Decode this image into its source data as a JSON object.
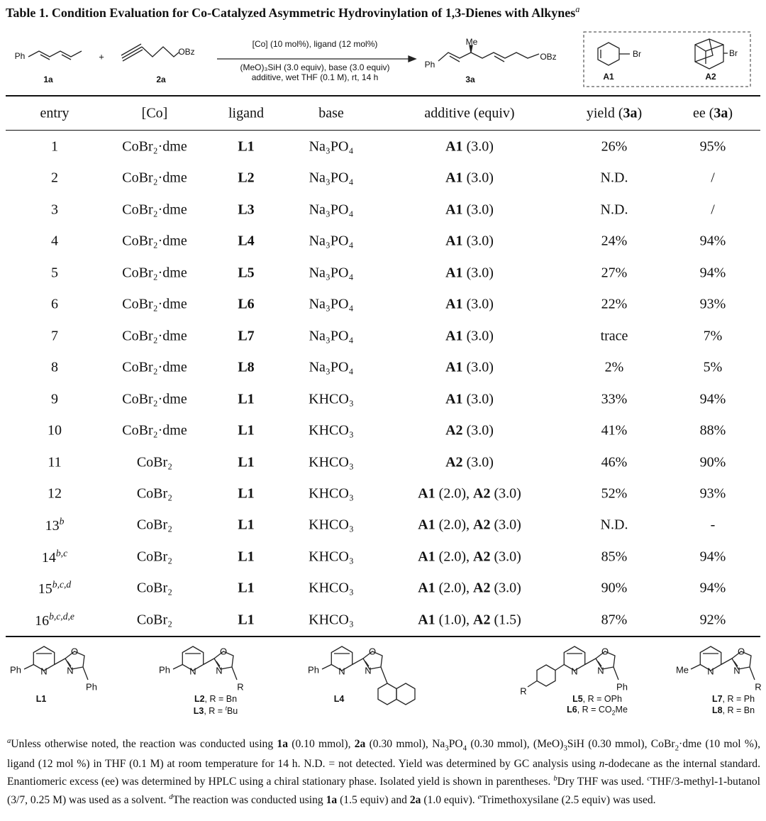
{
  "title": [
    {
      "t": "Table 1. Condition Evaluation for Co-Catalyzed Asymmetric Hydrovinylation of 1,3-Dienes with Alkynes",
      "s": "b"
    },
    {
      "t": "a",
      "s": "sup-i"
    }
  ],
  "scheme": {
    "reactant1": {
      "group": "Ph",
      "id": "1a"
    },
    "plus": "+",
    "reactant2": {
      "group": "OBz",
      "id": "2a"
    },
    "conditions": [
      "[Co] (10 mol%), ligand (12 mol%)",
      "(MeO)₃SiH (3.0 equiv), base (3.0 equiv)",
      "additive, wet THF (0.1 M), rt, 14 h"
    ],
    "product": {
      "methyl": "Me",
      "group1": "Ph",
      "group2": "OBz",
      "id": "3a"
    },
    "additives": [
      {
        "group": "Br",
        "id": "A1"
      },
      {
        "group": "Br",
        "id": "A2"
      }
    ]
  },
  "table": {
    "header": [
      [
        "entry"
      ],
      [
        "[Co]"
      ],
      [
        "ligand"
      ],
      [
        "base"
      ],
      [
        "additive (equiv)"
      ],
      [
        "yield (",
        {
          "t": "3a",
          "s": "b"
        },
        ")"
      ],
      [
        "ee (",
        {
          "t": "3a",
          "s": "b"
        },
        ")"
      ]
    ],
    "rows": [
      [
        [
          "1"
        ],
        [
          "CoBr₂·dme"
        ],
        [
          {
            "t": "L1",
            "s": "b"
          }
        ],
        [
          "Na₃PO₄"
        ],
        [
          {
            "t": "A1",
            "s": "b"
          },
          " (3.0)"
        ],
        [
          "26%"
        ],
        [
          "95%"
        ]
      ],
      [
        [
          "2"
        ],
        [
          "CoBr₂·dme"
        ],
        [
          {
            "t": "L2",
            "s": "b"
          }
        ],
        [
          "Na₃PO₄"
        ],
        [
          {
            "t": "A1",
            "s": "b"
          },
          " (3.0)"
        ],
        [
          "N.D."
        ],
        [
          "/"
        ]
      ],
      [
        [
          "3"
        ],
        [
          "CoBr₂·dme"
        ],
        [
          {
            "t": "L3",
            "s": "b"
          }
        ],
        [
          "Na₃PO₄"
        ],
        [
          {
            "t": "A1",
            "s": "b"
          },
          " (3.0)"
        ],
        [
          "N.D."
        ],
        [
          "/"
        ]
      ],
      [
        [
          "4"
        ],
        [
          "CoBr₂·dme"
        ],
        [
          {
            "t": "L4",
            "s": "b"
          }
        ],
        [
          "Na₃PO₄"
        ],
        [
          {
            "t": "A1",
            "s": "b"
          },
          " (3.0)"
        ],
        [
          "24%"
        ],
        [
          "94%"
        ]
      ],
      [
        [
          "5"
        ],
        [
          "CoBr₂·dme"
        ],
        [
          {
            "t": "L5",
            "s": "b"
          }
        ],
        [
          "Na₃PO₄"
        ],
        [
          {
            "t": "A1",
            "s": "b"
          },
          " (3.0)"
        ],
        [
          "27%"
        ],
        [
          "94%"
        ]
      ],
      [
        [
          "6"
        ],
        [
          "CoBr₂·dme"
        ],
        [
          {
            "t": "L6",
            "s": "b"
          }
        ],
        [
          "Na₃PO₄"
        ],
        [
          {
            "t": "A1",
            "s": "b"
          },
          " (3.0)"
        ],
        [
          "22%"
        ],
        [
          "93%"
        ]
      ],
      [
        [
          "7"
        ],
        [
          "CoBr₂·dme"
        ],
        [
          {
            "t": "L7",
            "s": "b"
          }
        ],
        [
          "Na₃PO₄"
        ],
        [
          {
            "t": "A1",
            "s": "b"
          },
          " (3.0)"
        ],
        [
          "trace"
        ],
        [
          "7%"
        ]
      ],
      [
        [
          "8"
        ],
        [
          "CoBr₂·dme"
        ],
        [
          {
            "t": "L8",
            "s": "b"
          }
        ],
        [
          "Na₃PO₄"
        ],
        [
          {
            "t": "A1",
            "s": "b"
          },
          " (3.0)"
        ],
        [
          "2%"
        ],
        [
          "5%"
        ]
      ],
      [
        [
          "9"
        ],
        [
          "CoBr₂·dme"
        ],
        [
          {
            "t": "L1",
            "s": "b"
          }
        ],
        [
          "KHCO₃"
        ],
        [
          {
            "t": "A1",
            "s": "b"
          },
          " (3.0)"
        ],
        [
          "33%"
        ],
        [
          "94%"
        ]
      ],
      [
        [
          "10"
        ],
        [
          "CoBr₂·dme"
        ],
        [
          {
            "t": "L1",
            "s": "b"
          }
        ],
        [
          "KHCO₃"
        ],
        [
          {
            "t": "A2",
            "s": "b"
          },
          " (3.0)"
        ],
        [
          "41%"
        ],
        [
          "88%"
        ]
      ],
      [
        [
          "11"
        ],
        [
          "CoBr₂"
        ],
        [
          {
            "t": "L1",
            "s": "b"
          }
        ],
        [
          "KHCO₃"
        ],
        [
          {
            "t": "A2",
            "s": "b"
          },
          " (3.0)"
        ],
        [
          "46%"
        ],
        [
          "90%"
        ]
      ],
      [
        [
          "12"
        ],
        [
          "CoBr₂"
        ],
        [
          {
            "t": "L1",
            "s": "b"
          }
        ],
        [
          "KHCO₃"
        ],
        [
          {
            "t": "A1",
            "s": "b"
          },
          " (2.0), ",
          {
            "t": "A2",
            "s": "b"
          },
          " (3.0)"
        ],
        [
          "52%"
        ],
        [
          "93%"
        ]
      ],
      [
        [
          "13",
          {
            "t": "b",
            "s": "sup-i"
          }
        ],
        [
          "CoBr₂"
        ],
        [
          {
            "t": "L1",
            "s": "b"
          }
        ],
        [
          "KHCO₃"
        ],
        [
          {
            "t": "A1",
            "s": "b"
          },
          " (2.0), ",
          {
            "t": "A2",
            "s": "b"
          },
          " (3.0)"
        ],
        [
          "N.D."
        ],
        [
          "-"
        ]
      ],
      [
        [
          "14",
          {
            "t": "b,c",
            "s": "sup-i"
          }
        ],
        [
          "CoBr₂"
        ],
        [
          {
            "t": "L1",
            "s": "b"
          }
        ],
        [
          "KHCO₃"
        ],
        [
          {
            "t": "A1",
            "s": "b"
          },
          " (2.0), ",
          {
            "t": "A2",
            "s": "b"
          },
          " (3.0)"
        ],
        [
          "85%"
        ],
        [
          "94%"
        ]
      ],
      [
        [
          "15",
          {
            "t": "b,c,d",
            "s": "sup-i"
          }
        ],
        [
          "CoBr₂"
        ],
        [
          {
            "t": "L1",
            "s": "b"
          }
        ],
        [
          "KHCO₃"
        ],
        [
          {
            "t": "A1",
            "s": "b"
          },
          " (2.0), ",
          {
            "t": "A2",
            "s": "b"
          },
          " (3.0)"
        ],
        [
          "90%"
        ],
        [
          "94%"
        ]
      ],
      [
        [
          "16",
          {
            "t": "b,c,d,e",
            "s": "sup-i"
          }
        ],
        [
          "CoBr₂"
        ],
        [
          {
            "t": "L1",
            "s": "b"
          }
        ],
        [
          "KHCO₃"
        ],
        [
          {
            "t": "A1",
            "s": "b"
          },
          " (1.0), ",
          {
            "t": "A2",
            "s": "b"
          },
          " (1.5)"
        ],
        [
          "87%"
        ],
        [
          "92%"
        ]
      ]
    ]
  },
  "ligands": [
    {
      "atoms": [
        "Ph",
        "N",
        "O",
        "N",
        "Ph"
      ],
      "caption": [
        [
          {
            "t": "L1",
            "s": "b"
          }
        ]
      ]
    },
    {
      "atoms": [
        "Ph",
        "N",
        "O",
        "N",
        "R"
      ],
      "caption": [
        [
          {
            "t": "L2",
            "s": "b"
          },
          ", R = Bn"
        ],
        [
          {
            "t": "L3",
            "s": "b"
          },
          ", R = ",
          {
            "t": "t",
            "s": "sup-i"
          },
          "Bu"
        ]
      ]
    },
    {
      "atoms": [
        "Ph",
        "N",
        "O",
        "N"
      ],
      "caption": [
        [
          {
            "t": "L4",
            "s": "b"
          }
        ]
      ]
    },
    {
      "atoms": [
        "R",
        "N",
        "O",
        "N",
        "Ph"
      ],
      "caption": [
        [
          {
            "t": "L5",
            "s": "b"
          },
          ", R = OPh"
        ],
        [
          {
            "t": "L6",
            "s": "b"
          },
          ", R = CO",
          {
            "t": "2",
            "s": "sub"
          },
          "Me"
        ]
      ]
    },
    {
      "atoms": [
        "Me",
        "N",
        "O",
        "N",
        "R"
      ],
      "caption": [
        [
          {
            "t": "L7",
            "s": "b"
          },
          ", R = Ph"
        ],
        [
          {
            "t": "L8",
            "s": "b"
          },
          ", R = Bn"
        ]
      ]
    }
  ],
  "footnotes": [
    {
      "t": "a",
      "s": "sup-i"
    },
    "Unless otherwise noted, the reaction was conducted using ",
    {
      "t": "1a",
      "s": "b"
    },
    " (0.10 mmol), ",
    {
      "t": "2a",
      "s": "b"
    },
    " (0.30 mmol), Na",
    {
      "t": "3",
      "s": "sub"
    },
    "PO",
    {
      "t": "4",
      "s": "sub"
    },
    " (0.30 mmol), (MeO)",
    {
      "t": "3",
      "s": "sub"
    },
    "SiH (0.30 mmol), CoBr",
    {
      "t": "2",
      "s": "sub"
    },
    "·dme (10 mol %), ligand (12 mol %) in THF (0.1 M) at room temperature for 14 h. N.D. = not detected. Yield was determined by GC analysis using ",
    {
      "t": "n",
      "s": "i"
    },
    "-dodecane as the internal standard. Enantiomeric excess (ee) was determined by HPLC using a chiral stationary phase. Isolated yield is shown in parentheses. ",
    {
      "t": "b",
      "s": "sup-i"
    },
    "Dry THF was used. ",
    {
      "t": "c",
      "s": "sup-i"
    },
    "THF/3-methyl-1-butanol (3/7, 0.25 M) was used as a solvent. ",
    {
      "t": "d",
      "s": "sup-i"
    },
    "The reaction was conducted using ",
    {
      "t": "1a",
      "s": "b"
    },
    " (1.5 equiv) and ",
    {
      "t": "2a",
      "s": "b"
    },
    " (1.0 equiv). ",
    {
      "t": "e",
      "s": "sup-i"
    },
    "Trimethoxysilane (2.5 equiv) was used."
  ]
}
